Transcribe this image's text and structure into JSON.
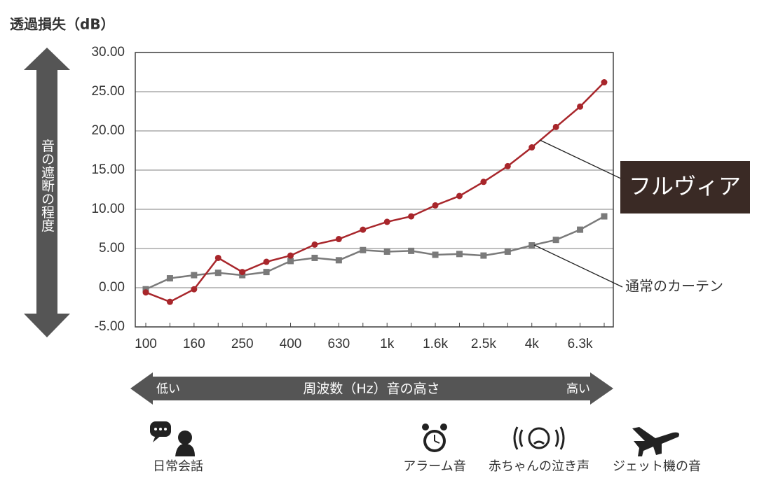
{
  "chart_data": {
    "type": "line",
    "y_label": "透過損失（dB）",
    "side_label": "音の遮断の程度",
    "categories": [
      "100",
      null,
      "160",
      null,
      "250",
      null,
      "400",
      null,
      "630",
      null,
      "1k",
      null,
      "1.6k",
      null,
      "2.5k",
      null,
      "4k",
      null,
      "6.3k",
      null
    ],
    "series": [
      {
        "name": "フルヴィア",
        "color": "#a8262b",
        "marker": "circle",
        "values": [
          -0.6,
          -1.8,
          -0.2,
          3.8,
          2.0,
          3.3,
          4.1,
          5.5,
          6.2,
          7.4,
          8.4,
          9.1,
          10.5,
          11.7,
          13.5,
          15.5,
          17.9,
          20.5,
          23.1,
          26.2
        ]
      },
      {
        "name": "通常のカーテン",
        "color": "#7a7a7a",
        "marker": "square",
        "values": [
          -0.2,
          1.2,
          1.6,
          1.9,
          1.6,
          2.0,
          3.4,
          3.8,
          3.5,
          4.8,
          4.6,
          4.7,
          4.2,
          4.3,
          4.1,
          4.6,
          5.4,
          6.1,
          7.4,
          9.1
        ]
      }
    ],
    "ylim": [
      -5,
      30
    ],
    "yticks": [
      {
        "value": -5,
        "label": "-5.00"
      },
      {
        "value": 0,
        "label": "0.00"
      },
      {
        "value": 5,
        "label": "5.00"
      },
      {
        "value": 10,
        "label": "10.00"
      },
      {
        "value": 15,
        "label": "15.00"
      },
      {
        "value": 20,
        "label": "20.00"
      },
      {
        "value": 25,
        "label": "25.00"
      },
      {
        "value": 30,
        "label": "30.00"
      }
    ],
    "grid": true,
    "x_arrow": {
      "low": "低い",
      "label": "周波数（Hz）音の高さ",
      "high": "高い"
    },
    "examples": [
      "日常会話",
      "アラーム音",
      "赤ちゃんの泣き声",
      "ジェット機の音"
    ]
  }
}
